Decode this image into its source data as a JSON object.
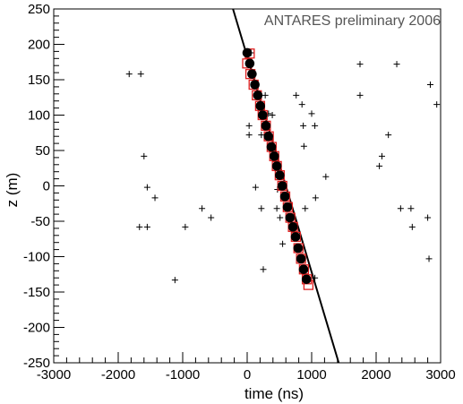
{
  "chart_data": {
    "type": "scatter",
    "annotation": "ANTARES preliminary 2006",
    "xlabel": "time (ns)",
    "ylabel": "z (m)",
    "xlim": [
      -3000,
      3000
    ],
    "ylim": [
      -250,
      250
    ],
    "x_ticks": [
      -3000,
      -2000,
      -1000,
      0,
      1000,
      2000,
      3000
    ],
    "x_tick_labels": [
      "-3000",
      "-2000",
      "-1000",
      "0",
      "1000",
      "2000",
      "3000"
    ],
    "y_ticks": [
      -250,
      -200,
      -150,
      -100,
      -50,
      0,
      50,
      100,
      150,
      200,
      250
    ],
    "y_tick_labels": [
      "-250",
      "-200",
      "-150",
      "-100",
      "-50",
      "0",
      "50",
      "100",
      "150",
      "200",
      "250"
    ],
    "grid": false,
    "fit_line": {
      "points": [
        [
          -220,
          250
        ],
        [
          1420,
          -250
        ]
      ],
      "color": "#000000"
    },
    "selected_hits": {
      "marker": "filled-circle",
      "color": "#000000",
      "points": [
        [
          0,
          188
        ],
        [
          40,
          173
        ],
        [
          75,
          158
        ],
        [
          120,
          143
        ],
        [
          165,
          128
        ],
        [
          205,
          113
        ],
        [
          240,
          100
        ],
        [
          290,
          85
        ],
        [
          330,
          70
        ],
        [
          375,
          55
        ],
        [
          420,
          42
        ],
        [
          460,
          28
        ],
        [
          505,
          15
        ],
        [
          545,
          0
        ],
        [
          585,
          -15
        ],
        [
          625,
          -30
        ],
        [
          665,
          -45
        ],
        [
          710,
          -58
        ],
        [
          750,
          -72
        ],
        [
          790,
          -88
        ],
        [
          835,
          -103
        ],
        [
          875,
          -118
        ],
        [
          920,
          -132
        ]
      ]
    },
    "triggered_hits": {
      "marker": "square",
      "color": "#e02020",
      "points": [
        [
          0,
          173
        ],
        [
          50,
          158
        ],
        [
          100,
          143
        ],
        [
          150,
          128
        ],
        [
          200,
          113
        ],
        [
          240,
          100
        ],
        [
          290,
          85
        ],
        [
          335,
          70
        ],
        [
          380,
          55
        ],
        [
          420,
          42
        ],
        [
          460,
          28
        ],
        [
          505,
          15
        ],
        [
          545,
          0
        ],
        [
          590,
          -15
        ],
        [
          630,
          -30
        ],
        [
          670,
          -45
        ],
        [
          710,
          -58
        ],
        [
          755,
          -72
        ],
        [
          795,
          -88
        ],
        [
          835,
          -103
        ],
        [
          880,
          -118
        ],
        [
          925,
          -132
        ],
        [
          40,
          187
        ],
        [
          950,
          -140
        ]
      ]
    },
    "all_hits": {
      "marker": "plus",
      "color": "#000000",
      "points": [
        [
          -1830,
          158
        ],
        [
          -1650,
          158
        ],
        [
          -1600,
          42
        ],
        [
          -1550,
          -2
        ],
        [
          -1430,
          -17
        ],
        [
          -1670,
          -58
        ],
        [
          -1550,
          -58
        ],
        [
          -1120,
          -133
        ],
        [
          -960,
          -58
        ],
        [
          -700,
          -32
        ],
        [
          -560,
          -45
        ],
        [
          60,
          188
        ],
        [
          30,
          85
        ],
        [
          30,
          72
        ],
        [
          130,
          -2
        ],
        [
          220,
          -32
        ],
        [
          220,
          72
        ],
        [
          250,
          -118
        ],
        [
          280,
          128
        ],
        [
          330,
          102
        ],
        [
          390,
          100
        ],
        [
          470,
          -5
        ],
        [
          460,
          -32
        ],
        [
          510,
          -45
        ],
        [
          550,
          -82
        ],
        [
          760,
          128
        ],
        [
          850,
          115
        ],
        [
          870,
          85
        ],
        [
          880,
          56
        ],
        [
          900,
          -32
        ],
        [
          1000,
          102
        ],
        [
          1050,
          85
        ],
        [
          1060,
          -17
        ],
        [
          1050,
          -130
        ],
        [
          1220,
          13
        ],
        [
          1750,
          172
        ],
        [
          1750,
          128
        ],
        [
          2050,
          28
        ],
        [
          2090,
          42
        ],
        [
          2190,
          72
        ],
        [
          2320,
          172
        ],
        [
          2380,
          -32
        ],
        [
          2540,
          -32
        ],
        [
          2560,
          -58
        ],
        [
          2800,
          -45
        ],
        [
          2840,
          143
        ],
        [
          2820,
          -103
        ],
        [
          2940,
          115
        ]
      ]
    }
  }
}
